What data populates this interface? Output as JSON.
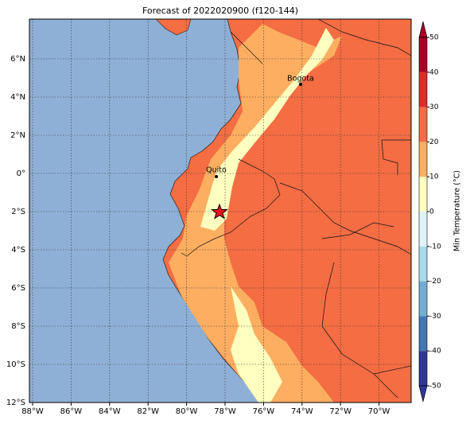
{
  "title": "Forecast of 2022020900 (f120-144)",
  "map": {
    "lon_ticks": [
      {
        "value": -88,
        "label": "88°W"
      },
      {
        "value": -86,
        "label": "86°W"
      },
      {
        "value": -84,
        "label": "84°W"
      },
      {
        "value": -82,
        "label": "82°W"
      },
      {
        "value": -80,
        "label": "80°W"
      },
      {
        "value": -78,
        "label": "78°W"
      },
      {
        "value": -76,
        "label": "76°W"
      },
      {
        "value": -74,
        "label": "74°W"
      },
      {
        "value": -72,
        "label": "72°W"
      },
      {
        "value": -70,
        "label": "70°W"
      }
    ],
    "lat_ticks": [
      {
        "value": 6,
        "label": "6°N"
      },
      {
        "value": 4,
        "label": "4°N"
      },
      {
        "value": 2,
        "label": "2°N"
      },
      {
        "value": 0,
        "label": "0°"
      },
      {
        "value": -2,
        "label": "2°S"
      },
      {
        "value": -4,
        "label": "4°S"
      },
      {
        "value": -6,
        "label": "6°S"
      },
      {
        "value": -8,
        "label": "8°S"
      },
      {
        "value": -10,
        "label": "10°S"
      },
      {
        "value": -12,
        "label": "12°S"
      }
    ],
    "cities": [
      {
        "name": "Bogota"
      },
      {
        "name": "Quito"
      }
    ]
  },
  "colorbar": {
    "label": "Min Temperature (°C)",
    "ticks": [
      -50,
      -40,
      -30,
      -20,
      -10,
      0,
      10,
      20,
      30,
      40,
      50
    ],
    "colors": [
      "#313695",
      "#4575b4",
      "#74add1",
      "#abd9e9",
      "#e0f3f8",
      "#ffffbf",
      "#fdae61",
      "#f46d43",
      "#d73027",
      "#a50026"
    ]
  }
}
